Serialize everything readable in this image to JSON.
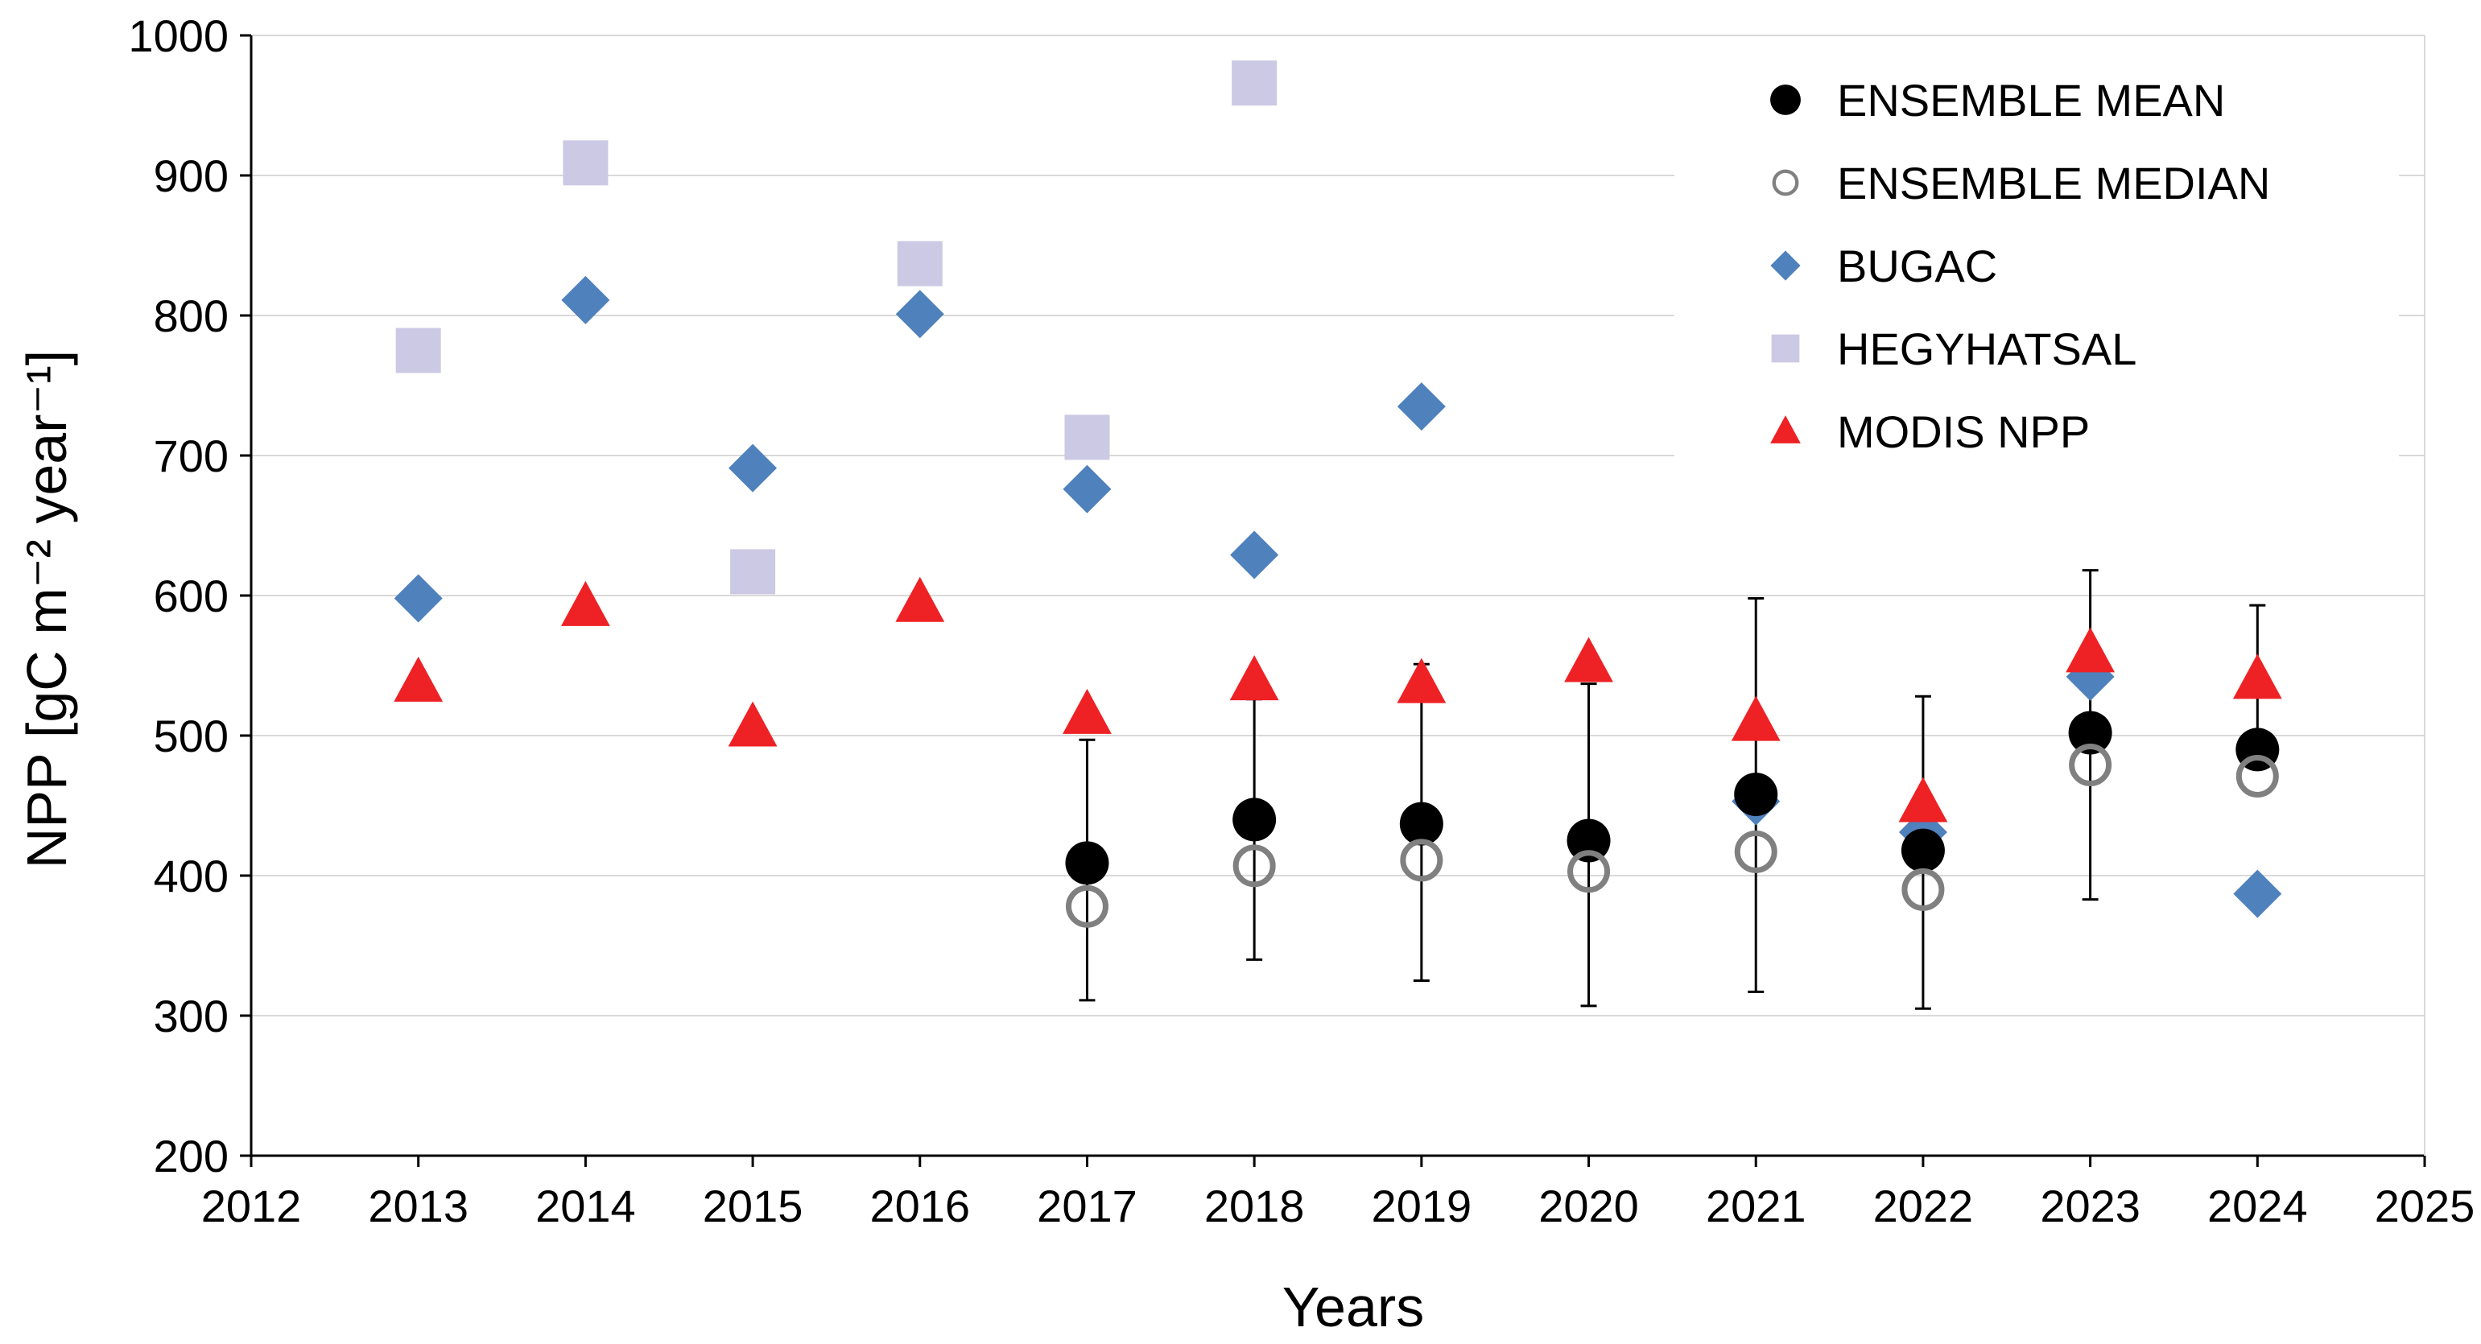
{
  "chart_data": {
    "type": "scatter",
    "title": "",
    "xlabel": "Years",
    "ylabel": "NPP [gC m⁻² year⁻¹]",
    "xlim": [
      2012,
      2025
    ],
    "ylim": [
      200,
      1000
    ],
    "xticks": [
      "2012",
      "2013",
      "2014",
      "2015",
      "2016",
      "2017",
      "2018",
      "2019",
      "2020",
      "2021",
      "2022",
      "2023",
      "2024",
      "2025"
    ],
    "yticks": [
      "200",
      "300",
      "400",
      "500",
      "600",
      "700",
      "800",
      "900",
      "1000"
    ],
    "grid": "horizontal",
    "legend_position": "top-right",
    "series": [
      {
        "name": "ENSEMBLE MEAN",
        "marker": "circle-filled",
        "color": "#000000",
        "x": [
          2017,
          2018,
          2019,
          2020,
          2021,
          2022,
          2023,
          2024
        ],
        "y": [
          409,
          440,
          437,
          425,
          458,
          418,
          502,
          490
        ],
        "error_low": [
          311,
          340,
          325,
          307,
          317,
          305,
          383,
          null
        ],
        "error_high": [
          497,
          526,
          551,
          537,
          598,
          528,
          618,
          593
        ]
      },
      {
        "name": "ENSEMBLE MEDIAN",
        "marker": "circle-open",
        "color": "#808080",
        "x": [
          2017,
          2018,
          2019,
          2020,
          2021,
          2022,
          2023,
          2024
        ],
        "y": [
          378,
          407,
          411,
          403,
          417,
          390,
          479,
          471
        ]
      },
      {
        "name": "BUGAC",
        "marker": "diamond",
        "color": "#4F81BD",
        "x": [
          2013,
          2014,
          2015,
          2016,
          2017,
          2018,
          2019,
          2021,
          2022,
          2023,
          2024
        ],
        "y": [
          598,
          811,
          691,
          801,
          676,
          629,
          735,
          453,
          431,
          542,
          387
        ]
      },
      {
        "name": "HEGYHATSAL",
        "marker": "square",
        "color": "#CCC9E4",
        "x": [
          2013,
          2014,
          2015,
          2016,
          2017,
          2018
        ],
        "y": [
          775,
          909,
          617,
          837,
          713,
          966
        ]
      },
      {
        "name": "MODIS NPP",
        "marker": "triangle",
        "color": "#EE2124",
        "x": [
          2013,
          2014,
          2015,
          2016,
          2017,
          2018,
          2019,
          2020,
          2021,
          2022,
          2023,
          2024
        ],
        "y": [
          538,
          592,
          506,
          595,
          515,
          539,
          537,
          552,
          510,
          452,
          559,
          540
        ]
      }
    ]
  }
}
